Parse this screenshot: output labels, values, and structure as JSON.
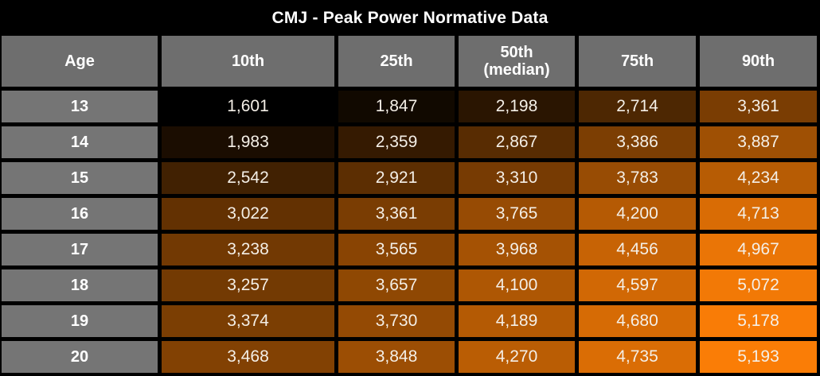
{
  "title": "CMJ - Peak Power Normative Data",
  "table": {
    "columns": [
      "Age",
      "10th",
      "25th",
      "50th\n(median)",
      "75th",
      "90th"
    ],
    "rows": [
      {
        "age": "13",
        "values": [
          "1,601",
          "1,847",
          "2,198",
          "2,714",
          "3,361"
        ]
      },
      {
        "age": "14",
        "values": [
          "1,983",
          "2,359",
          "2,867",
          "3,386",
          "3,887"
        ]
      },
      {
        "age": "15",
        "values": [
          "2,542",
          "2,921",
          "3,310",
          "3,783",
          "4,234"
        ]
      },
      {
        "age": "16",
        "values": [
          "3,022",
          "3,361",
          "3,765",
          "4,200",
          "4,713"
        ]
      },
      {
        "age": "17",
        "values": [
          "3,238",
          "3,565",
          "3,968",
          "4,456",
          "4,967"
        ]
      },
      {
        "age": "18",
        "values": [
          "3,257",
          "3,657",
          "4,100",
          "4,597",
          "5,072"
        ]
      },
      {
        "age": "19",
        "values": [
          "3,374",
          "3,730",
          "4,189",
          "4,680",
          "5,178"
        ]
      },
      {
        "age": "20",
        "values": [
          "3,468",
          "3,848",
          "4,270",
          "4,735",
          "5,193"
        ]
      }
    ]
  },
  "colors": {
    "background": "#000000",
    "header_gray": "#6E6E6E",
    "age_gray": "#757575",
    "header_text": "#FFFFFF",
    "value_text": "#F4EFE7",
    "heat_low": "#000000",
    "heat_high": "#FA7D06"
  },
  "chart_data": {
    "type": "heatmap",
    "title": "CMJ - Peak Power Normative Data",
    "row_label": "Age",
    "row_categories": [
      13,
      14,
      15,
      16,
      17,
      18,
      19,
      20
    ],
    "columns": [
      "10th",
      "25th",
      "50th (median)",
      "75th",
      "90th"
    ],
    "values": [
      [
        1601,
        1847,
        2198,
        2714,
        3361
      ],
      [
        1983,
        2359,
        2867,
        3386,
        3887
      ],
      [
        2542,
        2921,
        3310,
        3783,
        4234
      ],
      [
        3022,
        3361,
        3765,
        4200,
        4713
      ],
      [
        3238,
        3565,
        3968,
        4456,
        4967
      ],
      [
        3257,
        3657,
        4100,
        4597,
        5072
      ],
      [
        3374,
        3730,
        4189,
        4680,
        5178
      ],
      [
        3468,
        3848,
        4270,
        4735,
        5193
      ]
    ],
    "color_scale": {
      "min_value": 1601,
      "max_value": 5193,
      "min_color": "#000000",
      "max_color": "#FA7D06"
    }
  }
}
